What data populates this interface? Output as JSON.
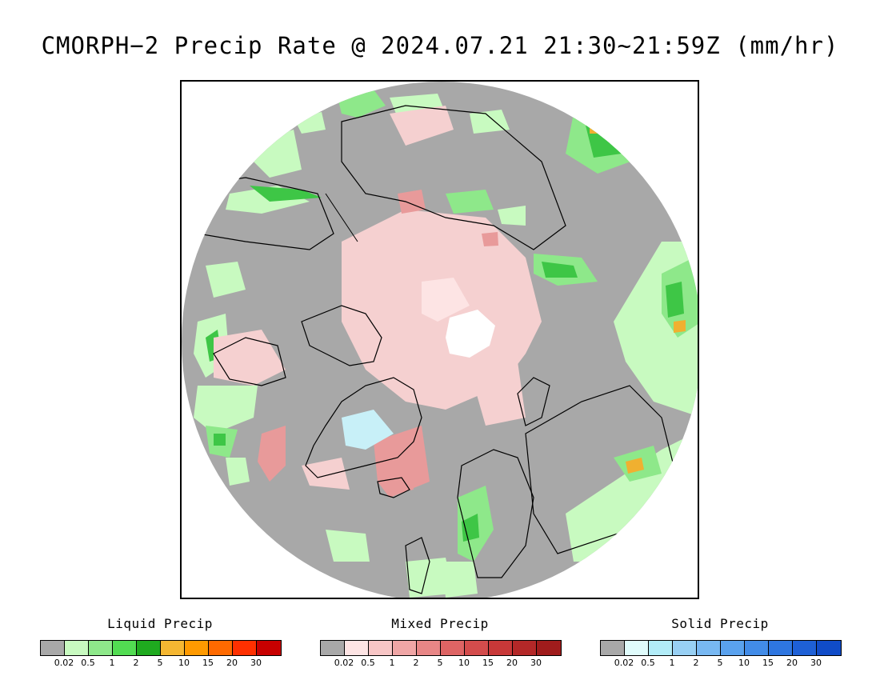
{
  "title": "CMORPH−2 Precip Rate @ 2024.07.21 21:30~21:59Z (mm/hr)",
  "map": {
    "projection": "north-polar-stereographic",
    "background_color": "#a8a8a8",
    "colors": {
      "liquid_light": "#c8fac0",
      "liquid_med": "#8ee88a",
      "liquid_dark": "#3ec646",
      "liquid_orange": "#f0b030",
      "mixed_light": "#f5d0d0",
      "mixed_med": "#e89a9a",
      "solid_light": "#c8f0f8",
      "missing": "#ffffff"
    }
  },
  "legends": [
    {
      "title": "Liquid Precip",
      "colors": [
        "#a8a8a8",
        "#c8fac0",
        "#8ee88a",
        "#52dc52",
        "#1faa1f",
        "#f5b732",
        "#ff9a00",
        "#ff6a00",
        "#ff3000",
        "#c80000"
      ],
      "ticks": [
        "0.02",
        "0.5",
        "1",
        "2",
        "5",
        "10",
        "15",
        "20",
        "30"
      ]
    },
    {
      "title": "Mixed Precip",
      "colors": [
        "#a8a8a8",
        "#fde4e4",
        "#f8c6c6",
        "#f0a6a6",
        "#e88686",
        "#de6464",
        "#d44c4c",
        "#c83838",
        "#b42828",
        "#a01c1c"
      ],
      "ticks": [
        "0.02",
        "0.5",
        "1",
        "2",
        "5",
        "10",
        "15",
        "20",
        "30"
      ]
    },
    {
      "title": "Solid Precip",
      "colors": [
        "#a8a8a8",
        "#e0fcfc",
        "#b2ecf8",
        "#98d0f4",
        "#78b8f2",
        "#5aa2ee",
        "#428ce8",
        "#2e76e0",
        "#1e60d6",
        "#104cc8"
      ],
      "ticks": [
        "0.02",
        "0.5",
        "1",
        "2",
        "5",
        "10",
        "15",
        "20",
        "30"
      ]
    }
  ]
}
